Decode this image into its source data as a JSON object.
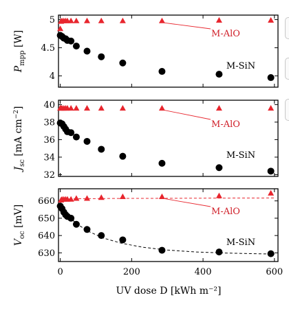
{
  "colors": {
    "mAlo": "#e8262e",
    "mSin": "#000000",
    "frame": "#000000"
  },
  "xlabel": "UV dose D [kWh m⁻²]",
  "xticks": [
    "0",
    "200",
    "400",
    "600"
  ],
  "chart_data": [
    {
      "type": "scatter",
      "ylabel": "P_mpp [W]",
      "ylim": [
        3.8,
        5.08
      ],
      "xlim": [
        -5,
        610
      ],
      "yticks": [
        5,
        4.5,
        4
      ],
      "yticklabels": [
        "5",
        "4.5",
        "4"
      ],
      "grid": false,
      "series": [
        {
          "name": "M-AlO",
          "marker": "triangle",
          "x": [
            0,
            2,
            5,
            10,
            15,
            20,
            30,
            45,
            75,
            115,
            175,
            285,
            445,
            590
          ],
          "y": [
            4.84,
            4.97,
            4.98,
            4.98,
            4.98,
            4.98,
            4.98,
            4.98,
            4.98,
            4.98,
            4.98,
            4.98,
            4.99,
            4.99
          ]
        },
        {
          "name": "M-SiN",
          "marker": "circle",
          "x": [
            0,
            5,
            10,
            15,
            20,
            30,
            45,
            75,
            115,
            175,
            285,
            445,
            590
          ],
          "y": [
            4.72,
            4.7,
            4.67,
            4.66,
            4.63,
            4.62,
            4.53,
            4.44,
            4.34,
            4.23,
            4.08,
            4.03,
            3.97
          ]
        }
      ],
      "annotations": [
        {
          "text": "M-AlO",
          "color": "red",
          "ax": 328,
          "ay": 53
        },
        {
          "text": "M-SiN",
          "color": "black",
          "ax": 350,
          "ay": 100
        }
      ]
    },
    {
      "type": "scatter",
      "ylabel": "J_sc [mA cm⁻²]",
      "ylim": [
        31.8,
        40.5
      ],
      "xlim": [
        -5,
        610
      ],
      "yticks": [
        40,
        38,
        36,
        34,
        32
      ],
      "yticklabels": [
        "40",
        "38",
        "36",
        "34",
        "32"
      ],
      "grid": false,
      "series": [
        {
          "name": "M-AlO",
          "marker": "triangle",
          "x": [
            0,
            2,
            5,
            10,
            15,
            20,
            30,
            45,
            75,
            115,
            175,
            285,
            445,
            590
          ],
          "y": [
            39.6,
            39.6,
            39.6,
            39.6,
            39.6,
            39.6,
            39.6,
            39.6,
            39.6,
            39.6,
            39.6,
            39.6,
            39.6,
            39.6
          ]
        },
        {
          "name": "M-SiN",
          "marker": "circle",
          "x": [
            0,
            5,
            10,
            15,
            20,
            30,
            45,
            75,
            115,
            175,
            285,
            445,
            590
          ],
          "y": [
            37.9,
            37.8,
            37.5,
            37.2,
            36.9,
            36.8,
            36.3,
            35.8,
            34.9,
            34.1,
            33.3,
            32.8,
            32.4
          ]
        }
      ],
      "annotations": [
        {
          "text": "M-AlO",
          "color": "red",
          "ax": 328,
          "ay": 185
        },
        {
          "text": "M-SiN",
          "color": "black",
          "ax": 350,
          "ay": 230
        }
      ]
    },
    {
      "type": "scatter",
      "ylabel": "V_oc [mV]",
      "ylim": [
        625,
        667
      ],
      "xlim": [
        -5,
        610
      ],
      "yticks": [
        660,
        650,
        640,
        630
      ],
      "yticklabels": [
        "660",
        "650",
        "640",
        "630"
      ],
      "grid": false,
      "series": [
        {
          "name": "M-AlO",
          "marker": "triangle",
          "x": [
            0,
            2,
            5,
            10,
            15,
            20,
            30,
            45,
            75,
            115,
            175,
            285,
            445,
            590
          ],
          "y": [
            657.5,
            660.5,
            661,
            661,
            661,
            661,
            661,
            661.5,
            661.5,
            662,
            662.5,
            662.5,
            663,
            664.5
          ]
        },
        {
          "name": "M-SiN",
          "marker": "circle",
          "x": [
            0,
            5,
            10,
            15,
            20,
            30,
            45,
            75,
            115,
            175,
            285,
            445,
            590
          ],
          "y": [
            657,
            655.5,
            653.5,
            652,
            651,
            650,
            646.5,
            643.5,
            640,
            637.5,
            631.5,
            630.5,
            629.5
          ]
        }
      ],
      "fits": [
        {
          "series": "M-AlO",
          "style": "dashed",
          "x": [
            0,
            5,
            10,
            20,
            40,
            80,
            150,
            300,
            450,
            600
          ],
          "y": [
            659.5,
            660.8,
            661,
            661.1,
            661.2,
            661.3,
            661.4,
            661.5,
            661.6,
            661.7
          ]
        },
        {
          "series": "M-SiN",
          "style": "dashed",
          "x": [
            0,
            10,
            25,
            50,
            80,
            120,
            170,
            230,
            300,
            380,
            460,
            540,
            600
          ],
          "y": [
            657.5,
            654.2,
            650.6,
            646.2,
            642.3,
            638.6,
            635.6,
            633.3,
            631.6,
            630.5,
            629.9,
            629.5,
            629.3
          ]
        }
      ],
      "annotations": [
        {
          "text": "M-AlO",
          "color": "red",
          "ax": 328,
          "ay": 312
        },
        {
          "text": "M-SiN",
          "color": "black",
          "ax": 350,
          "ay": 357
        }
      ]
    }
  ]
}
